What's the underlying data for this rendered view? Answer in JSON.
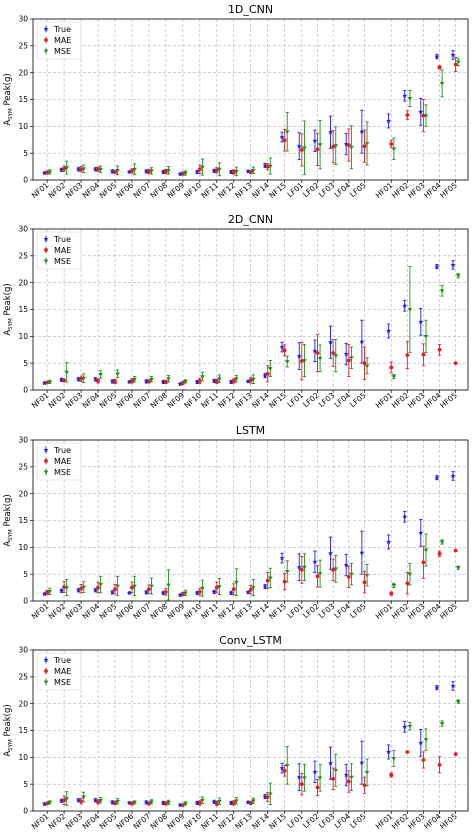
{
  "chart_data": [
    {
      "type": "scatter",
      "title": "1D_CNN",
      "xlabel": "",
      "ylabel": "A_SYM Peak(g)",
      "ylabel_main": "A",
      "ylabel_sub": "SYM",
      "ylabel_rest": " Peak(g)",
      "ylim": [
        0,
        30
      ],
      "yticks": [
        "0",
        "5",
        "10",
        "15",
        "20",
        "25",
        "30"
      ],
      "grid": true,
      "legend": "top-left",
      "categories": [
        "NF01",
        "NF02",
        "NF03",
        "NF04",
        "NF05",
        "NF06",
        "NF07",
        "NF08",
        "NF09",
        "NF10",
        "NF11",
        "NF12",
        "NF13",
        "NF14",
        "NF15",
        "LF01",
        "LF02",
        "LF03",
        "LF04",
        "LF05",
        "HF01",
        "HF02",
        "HF03",
        "HF04",
        "HF05"
      ],
      "series": [
        {
          "name": "True",
          "color": "#1f1fe0",
          "marker": "star",
          "values": [
            1.3,
            1.9,
            2.0,
            2.0,
            1.6,
            1.5,
            1.6,
            1.5,
            1.1,
            1.5,
            1.7,
            1.5,
            1.6,
            2.7,
            8.0,
            6.3,
            7.3,
            8.9,
            6.7,
            9.0,
            11.0,
            15.7,
            12.7,
            23.0,
            23.3
          ],
          "errors": [
            0.2,
            0.3,
            0.3,
            0.3,
            0.3,
            0.2,
            0.3,
            0.3,
            0.2,
            0.3,
            0.3,
            0.3,
            0.2,
            0.4,
            0.9,
            2.5,
            2.0,
            3.0,
            2.0,
            4.0,
            1.3,
            1.0,
            2.5,
            0.4,
            0.8
          ]
        },
        {
          "name": "MAE",
          "color": "#e01f1f",
          "marker": "circle",
          "values": [
            1.4,
            2.1,
            2.0,
            2.0,
            1.5,
            1.7,
            1.6,
            1.6,
            1.2,
            2.0,
            1.8,
            1.5,
            1.5,
            2.5,
            7.4,
            5.6,
            5.7,
            6.2,
            6.5,
            6.3,
            6.7,
            12.1,
            12.0,
            21.0,
            21.5
          ],
          "errors": [
            0.3,
            0.5,
            0.5,
            0.4,
            0.3,
            0.4,
            0.4,
            0.4,
            0.3,
            0.8,
            0.5,
            0.4,
            0.3,
            0.6,
            2.0,
            3.0,
            3.0,
            3.0,
            3.0,
            3.0,
            0.7,
            0.8,
            3.0,
            0.3,
            1.3
          ]
        },
        {
          "name": "MSE",
          "color": "#1f8f1f",
          "marker": "triangle",
          "values": [
            1.5,
            2.3,
            2.1,
            2.0,
            1.8,
            2.0,
            1.7,
            1.8,
            1.3,
            2.4,
            2.0,
            1.6,
            1.8,
            2.6,
            9.0,
            6.0,
            6.6,
            6.4,
            6.1,
            6.8,
            5.8,
            15.2,
            12.0,
            18.0,
            22.0
          ],
          "errors": [
            0.4,
            1.2,
            0.7,
            0.6,
            0.8,
            1.0,
            0.6,
            0.7,
            0.4,
            1.5,
            1.2,
            0.8,
            0.6,
            1.5,
            3.6,
            5.0,
            4.5,
            3.5,
            4.0,
            4.0,
            2.0,
            1.5,
            2.0,
            2.5,
            0.7
          ]
        }
      ]
    },
    {
      "type": "scatter",
      "title": "2D_CNN",
      "xlabel": "",
      "ylabel": "A_SYM Peak(g)",
      "ylabel_main": "A",
      "ylabel_sub": "SYM",
      "ylabel_rest": " Peak(g)",
      "ylim": [
        0,
        30
      ],
      "yticks": [
        "0",
        "5",
        "10",
        "15",
        "20",
        "25",
        "30"
      ],
      "grid": true,
      "legend": "top-left",
      "categories": [
        "NF01",
        "NF02",
        "NF03",
        "NF04",
        "NF05",
        "NF06",
        "NF07",
        "NF08",
        "NF09",
        "NF10",
        "NF11",
        "NF12",
        "NF13",
        "NF14",
        "NF15",
        "LF01",
        "LF02",
        "LF03",
        "LF04",
        "LF05",
        "HF01",
        "HF02",
        "HF03",
        "HF04",
        "HF05"
      ],
      "series": [
        {
          "name": "True",
          "color": "#1f1fe0",
          "marker": "star",
          "values": [
            1.3,
            1.9,
            2.0,
            2.0,
            1.6,
            1.5,
            1.6,
            1.5,
            1.1,
            1.5,
            1.7,
            1.5,
            1.6,
            2.7,
            8.0,
            6.3,
            7.3,
            8.9,
            6.7,
            9.0,
            11.0,
            15.7,
            12.7,
            23.0,
            23.3
          ],
          "errors": [
            0.2,
            0.3,
            0.3,
            0.3,
            0.3,
            0.2,
            0.3,
            0.3,
            0.2,
            0.3,
            0.3,
            0.3,
            0.2,
            0.4,
            0.9,
            2.5,
            2.0,
            3.0,
            2.0,
            4.0,
            1.3,
            1.0,
            2.5,
            0.4,
            0.8
          ]
        },
        {
          "name": "MAE",
          "color": "#e01f1f",
          "marker": "circle",
          "values": [
            1.4,
            1.8,
            2.1,
            1.7,
            1.6,
            1.7,
            1.6,
            1.5,
            1.3,
            1.7,
            1.6,
            1.7,
            1.8,
            3.0,
            7.4,
            5.4,
            6.9,
            6.9,
            5.5,
            5.0,
            4.2,
            6.5,
            6.6,
            7.5,
            5.0
          ],
          "errors": [
            0.2,
            0.3,
            0.5,
            0.4,
            0.4,
            0.4,
            0.3,
            0.3,
            0.3,
            0.5,
            0.4,
            0.4,
            0.5,
            1.5,
            1.0,
            3.5,
            3.5,
            2.5,
            3.0,
            3.0,
            1.0,
            2.5,
            2.0,
            1.0,
            0.1
          ]
        },
        {
          "name": "MSE",
          "color": "#1f8f1f",
          "marker": "triangle",
          "values": [
            1.5,
            3.3,
            2.2,
            2.9,
            3.0,
            2.0,
            2.0,
            2.1,
            1.6,
            2.5,
            2.1,
            2.1,
            2.0,
            4.0,
            5.3,
            5.5,
            5.9,
            6.4,
            6.0,
            4.5,
            2.5,
            15.0,
            10.0,
            18.5,
            21.3
          ],
          "errors": [
            0.3,
            1.8,
            0.8,
            0.7,
            0.7,
            0.5,
            0.5,
            0.6,
            0.3,
            0.8,
            0.7,
            0.6,
            0.8,
            1.5,
            1.0,
            3.0,
            2.5,
            3.0,
            2.0,
            1.5,
            0.4,
            8.0,
            3.0,
            1.0,
            0.4
          ]
        }
      ]
    },
    {
      "type": "scatter",
      "title": "LSTM",
      "xlabel": "",
      "ylabel": "A_SYM Peak(g)",
      "ylabel_main": "A",
      "ylabel_sub": "SYM",
      "ylabel_rest": " Peak(g)",
      "ylim": [
        0,
        30
      ],
      "yticks": [
        "0",
        "5",
        "10",
        "15",
        "20",
        "25",
        "30"
      ],
      "grid": true,
      "legend": "top-left",
      "categories": [
        "NF01",
        "NF02",
        "NF03",
        "NF04",
        "NF05",
        "NF06",
        "NF07",
        "NF08",
        "NF09",
        "NF10",
        "NF11",
        "NF12",
        "NF13",
        "NF14",
        "NF15",
        "LF01",
        "LF02",
        "LF03",
        "LF04",
        "LF05",
        "HF01",
        "HF02",
        "HF03",
        "HF04",
        "HF05"
      ],
      "series": [
        {
          "name": "True",
          "color": "#1f1fe0",
          "marker": "star",
          "values": [
            1.3,
            1.9,
            2.0,
            2.0,
            1.6,
            1.5,
            1.6,
            1.5,
            1.1,
            1.5,
            1.7,
            1.5,
            1.6,
            2.7,
            8.0,
            6.3,
            7.3,
            8.9,
            6.7,
            9.0,
            11.0,
            15.7,
            12.7,
            23.0,
            23.3
          ],
          "errors": [
            0.2,
            0.3,
            0.3,
            0.3,
            0.3,
            0.2,
            0.3,
            0.3,
            0.2,
            0.3,
            0.3,
            0.3,
            0.2,
            0.4,
            0.9,
            2.5,
            2.0,
            3.0,
            2.0,
            4.0,
            1.3,
            1.0,
            2.5,
            0.4,
            0.8
          ]
        },
        {
          "name": "MAE",
          "color": "#e01f1f",
          "marker": "circle",
          "values": [
            1.6,
            2.6,
            2.3,
            2.5,
            2.2,
            2.5,
            2.2,
            1.7,
            1.3,
            1.7,
            2.5,
            2.2,
            2.1,
            3.8,
            3.6,
            5.8,
            4.6,
            5.8,
            4.5,
            3.5,
            1.4,
            3.3,
            7.2,
            8.8,
            9.4
          ],
          "errors": [
            0.4,
            1.0,
            0.8,
            1.0,
            0.9,
            1.0,
            0.8,
            0.6,
            0.3,
            0.6,
            1.0,
            1.0,
            0.8,
            1.5,
            1.5,
            2.5,
            2.0,
            2.0,
            2.0,
            2.0,
            0.3,
            2.0,
            3.0,
            0.5,
            0.1
          ]
        },
        {
          "name": "MSE",
          "color": "#1f8f1f",
          "marker": "triangle",
          "values": [
            1.8,
            2.5,
            2.6,
            3.1,
            2.8,
            2.8,
            2.8,
            3.0,
            1.5,
            2.4,
            2.7,
            3.5,
            2.5,
            4.3,
            5.5,
            6.3,
            5.1,
            6.0,
            5.0,
            4.8,
            2.9,
            5.0,
            9.5,
            11.0,
            6.2
          ],
          "errors": [
            0.6,
            1.5,
            1.0,
            1.5,
            1.8,
            1.8,
            1.5,
            2.8,
            0.5,
            1.5,
            1.5,
            2.5,
            1.5,
            1.8,
            2.0,
            2.5,
            2.5,
            2.5,
            2.0,
            2.0,
            0.4,
            2.0,
            3.0,
            0.4,
            0.3
          ]
        }
      ]
    },
    {
      "type": "scatter",
      "title": "Conv_LSTM",
      "xlabel": "",
      "ylabel": "A_SYM Peak(g)",
      "ylabel_main": "A",
      "ylabel_sub": "SYM",
      "ylabel_rest": " Peak(g)",
      "ylim": [
        0,
        30
      ],
      "yticks": [
        "0",
        "5",
        "10",
        "15",
        "20",
        "25",
        "30"
      ],
      "grid": true,
      "legend": "top-left",
      "categories": [
        "NF01",
        "NF02",
        "NF03",
        "NF04",
        "NF05",
        "NF06",
        "NF07",
        "NF08",
        "NF09",
        "NF10",
        "NF11",
        "NF12",
        "NF13",
        "NF14",
        "NF15",
        "LF01",
        "LF02",
        "LF03",
        "LF04",
        "LF05",
        "HF01",
        "HF02",
        "HF03",
        "HF04",
        "HF05"
      ],
      "series": [
        {
          "name": "True",
          "color": "#1f1fe0",
          "marker": "star",
          "values": [
            1.3,
            1.9,
            2.0,
            2.0,
            1.6,
            1.5,
            1.6,
            1.5,
            1.1,
            1.5,
            1.7,
            1.5,
            1.6,
            2.7,
            8.0,
            6.3,
            7.3,
            8.9,
            6.7,
            9.0,
            11.0,
            15.7,
            12.7,
            23.0,
            23.3
          ],
          "errors": [
            0.2,
            0.3,
            0.3,
            0.3,
            0.3,
            0.2,
            0.3,
            0.3,
            0.2,
            0.3,
            0.3,
            0.3,
            0.2,
            0.4,
            0.9,
            2.5,
            2.0,
            3.0,
            2.0,
            4.0,
            1.3,
            1.0,
            2.5,
            0.4,
            0.8
          ]
        },
        {
          "name": "MAE",
          "color": "#e01f1f",
          "marker": "circle",
          "values": [
            1.4,
            2.0,
            1.8,
            1.7,
            1.5,
            1.4,
            1.4,
            1.4,
            1.1,
            1.5,
            1.4,
            1.5,
            1.5,
            2.6,
            7.5,
            5.0,
            4.4,
            6.0,
            5.5,
            4.8,
            6.7,
            11.0,
            9.5,
            8.6,
            10.6
          ],
          "errors": [
            0.2,
            0.8,
            0.5,
            0.4,
            0.3,
            0.3,
            0.3,
            0.3,
            0.2,
            0.4,
            0.4,
            0.4,
            0.3,
            0.8,
            1.0,
            2.0,
            1.5,
            2.0,
            2.0,
            1.5,
            0.4,
            0.1,
            1.5,
            1.5,
            0.2
          ]
        },
        {
          "name": "MSE",
          "color": "#1f8f1f",
          "marker": "triangle",
          "values": [
            1.6,
            2.3,
            2.6,
            2.0,
            1.8,
            1.6,
            1.7,
            1.6,
            1.4,
            2.0,
            1.8,
            1.9,
            1.9,
            3.2,
            8.5,
            6.2,
            6.2,
            7.6,
            6.3,
            7.2,
            9.8,
            15.8,
            13.3,
            16.3,
            20.4
          ],
          "errors": [
            0.3,
            1.3,
            0.9,
            0.5,
            0.5,
            0.3,
            0.4,
            0.4,
            0.3,
            0.6,
            0.6,
            0.6,
            0.5,
            2.0,
            3.5,
            2.5,
            2.5,
            3.0,
            2.5,
            2.5,
            1.5,
            0.7,
            2.0,
            0.5,
            0.3
          ]
        }
      ]
    }
  ]
}
